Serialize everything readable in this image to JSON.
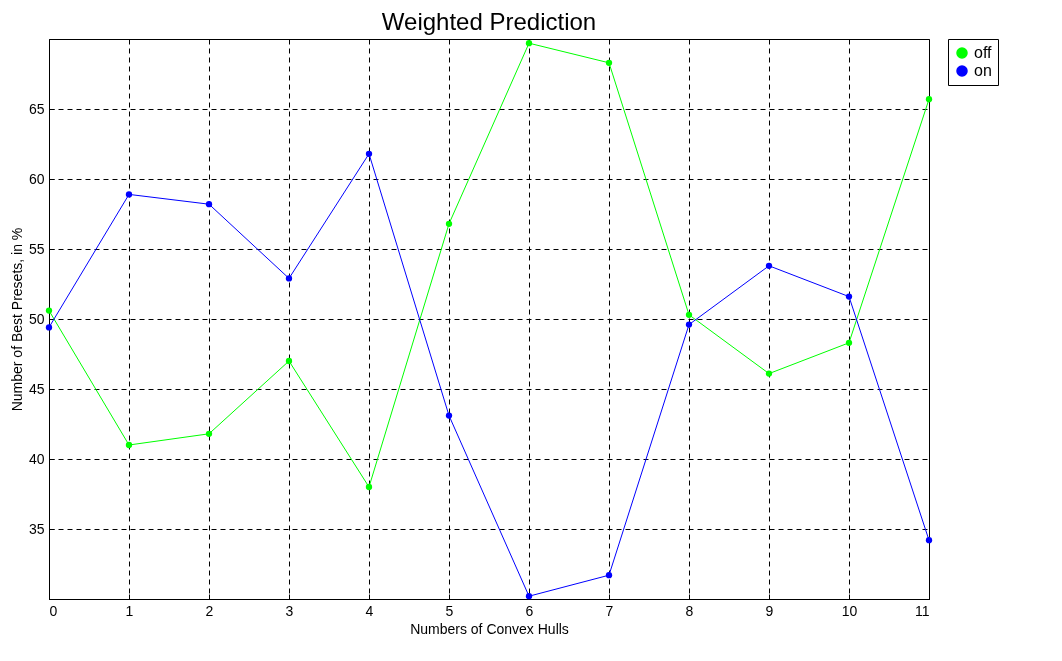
{
  "chart_data": {
    "type": "line",
    "title": "Weighted Prediction",
    "xlabel": "Numbers of Convex Hulls",
    "ylabel": "Number of Best Presets, in %",
    "x": [
      0,
      1,
      2,
      3,
      4,
      5,
      6,
      7,
      8,
      9,
      10,
      11
    ],
    "series": [
      {
        "name": "off",
        "color": "#00ff00",
        "values": [
          50.6,
          41.0,
          41.8,
          47.0,
          38.0,
          56.8,
          69.7,
          68.3,
          50.3,
          46.1,
          48.3,
          65.7
        ]
      },
      {
        "name": "on",
        "color": "#0000ff",
        "values": [
          49.4,
          58.9,
          58.2,
          52.9,
          61.8,
          43.1,
          30.2,
          31.7,
          49.6,
          53.8,
          51.6,
          34.2
        ]
      }
    ],
    "xlim": [
      0,
      11
    ],
    "xticks": [
      0,
      1,
      2,
      3,
      4,
      5,
      6,
      7,
      8,
      9,
      10,
      11
    ],
    "ylim": [
      30,
      70
    ],
    "yticks": [
      35,
      40,
      45,
      50,
      55,
      60,
      65
    ],
    "grid": true,
    "legend": "right",
    "marker": "circle",
    "line_style": "solid"
  }
}
